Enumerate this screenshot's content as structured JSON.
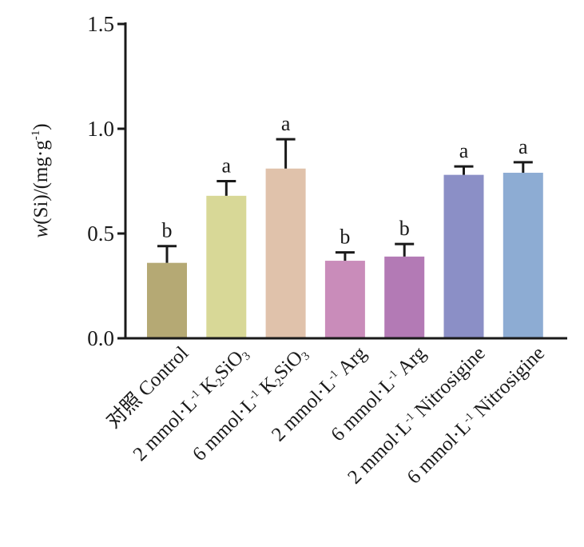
{
  "chart_data": {
    "type": "bar",
    "ylabel_parts": {
      "w": "w",
      "rest": "(Si)/(mg·g",
      "sup": "-1",
      "close": ")"
    },
    "ylim": [
      0,
      1.5
    ],
    "yticks": [
      "0.0",
      "0.5",
      "1.0",
      "1.5"
    ],
    "categories": [
      {
        "parts": [
          {
            "t": "对照 Control"
          }
        ]
      },
      {
        "parts": [
          {
            "t": "2 mmol·L"
          },
          {
            "t": "-1",
            "s": "sup"
          },
          {
            "t": " K"
          },
          {
            "t": "2",
            "s": "sub"
          },
          {
            "t": "SiO"
          },
          {
            "t": "3",
            "s": "sub"
          }
        ]
      },
      {
        "parts": [
          {
            "t": "6 mmol·L"
          },
          {
            "t": "-1",
            "s": "sup"
          },
          {
            "t": " K"
          },
          {
            "t": "2",
            "s": "sub"
          },
          {
            "t": "SiO"
          },
          {
            "t": "3",
            "s": "sub"
          }
        ]
      },
      {
        "parts": [
          {
            "t": "2 mmol·L"
          },
          {
            "t": "-1",
            "s": "sup"
          },
          {
            "t": " Arg"
          }
        ]
      },
      {
        "parts": [
          {
            "t": "6 mmol·L"
          },
          {
            "t": "-1",
            "s": "sup"
          },
          {
            "t": " Arg"
          }
        ]
      },
      {
        "parts": [
          {
            "t": "2 mmol·L"
          },
          {
            "t": "-1",
            "s": "sup"
          },
          {
            "t": " Nitrosigine"
          }
        ]
      },
      {
        "parts": [
          {
            "t": "6 mmol·L"
          },
          {
            "t": "-1",
            "s": "sup"
          },
          {
            "t": " Nitrosigine"
          }
        ]
      }
    ],
    "values": [
      0.36,
      0.68,
      0.81,
      0.37,
      0.39,
      0.78,
      0.79
    ],
    "errors": [
      0.08,
      0.07,
      0.14,
      0.04,
      0.06,
      0.04,
      0.05
    ],
    "significance": [
      "b",
      "a",
      "a",
      "b",
      "b",
      "a",
      "a"
    ],
    "colors": [
      "#b5a974",
      "#d8d897",
      "#e0c2ab",
      "#c98cba",
      "#b37ab5",
      "#8b8fc6",
      "#8dacd3"
    ],
    "grid": false,
    "legend": "none"
  }
}
